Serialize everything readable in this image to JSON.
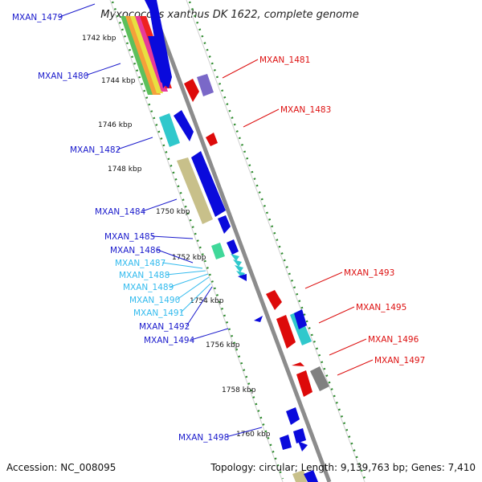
{
  "title": "Myxococcus xanthus DK 1622, complete genome",
  "accession": "Accession: NC_008095",
  "topology": "Topology: circular; Length: 9,139,763 bp; Genes: 7,410",
  "colors": {
    "backbone": "#8c8c8c",
    "tick_dot": "#2e8b2e",
    "forward_label": "#1a1acc",
    "reverse_label": "#dd1111",
    "small_gene_label": "#33bbee",
    "gene_blue": "#0a0adc",
    "gene_red": "#dd0a0a",
    "gene_cyan": "#30c8cc",
    "gene_olive": "#c8c08a",
    "gene_purple": "#7a68c8",
    "gene_gray": "#808080",
    "gene_green": "#40d89a"
  },
  "ticks": [
    {
      "label": "1742 kbp"
    },
    {
      "label": "1744 kbp"
    },
    {
      "label": "1746 kbp"
    },
    {
      "label": "1748 kbp"
    },
    {
      "label": "1750 kbp"
    },
    {
      "label": "1752 kbp"
    },
    {
      "label": "1754 kbp"
    },
    {
      "label": "1756 kbp"
    },
    {
      "label": "1758 kbp"
    },
    {
      "label": "1760 kbp"
    }
  ],
  "gene_labels": {
    "left": [
      {
        "text": "MXAN_1479",
        "color": "#1a1acc"
      },
      {
        "text": "MXAN_1480",
        "color": "#1a1acc"
      },
      {
        "text": "MXAN_1482",
        "color": "#1a1acc"
      },
      {
        "text": "MXAN_1484",
        "color": "#1a1acc"
      },
      {
        "text": "MXAN_1485",
        "color": "#1a1acc"
      },
      {
        "text": "MXAN_1486",
        "color": "#1a1acc"
      },
      {
        "text": "MXAN_1487",
        "color": "#33bbee"
      },
      {
        "text": "MXAN_1488",
        "color": "#33bbee"
      },
      {
        "text": "MXAN_1489",
        "color": "#33bbee"
      },
      {
        "text": "MXAN_1490",
        "color": "#33bbee"
      },
      {
        "text": "MXAN_1491",
        "color": "#33bbee"
      },
      {
        "text": "MXAN_1492",
        "color": "#1a1acc"
      },
      {
        "text": "MXAN_1494",
        "color": "#1a1acc"
      },
      {
        "text": "MXAN_1498",
        "color": "#1a1acc"
      }
    ],
    "right": [
      {
        "text": "MXAN_1481",
        "color": "#dd1111"
      },
      {
        "text": "MXAN_1483",
        "color": "#dd1111"
      },
      {
        "text": "MXAN_1493",
        "color": "#dd1111"
      },
      {
        "text": "MXAN_1495",
        "color": "#dd1111"
      },
      {
        "text": "MXAN_1496",
        "color": "#dd1111"
      },
      {
        "text": "MXAN_1497",
        "color": "#dd1111"
      }
    ]
  }
}
